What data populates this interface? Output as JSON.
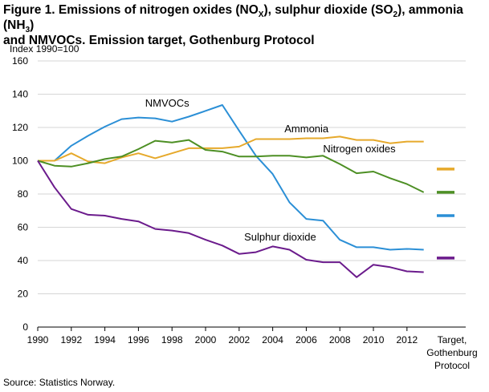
{
  "figure": {
    "title_parts": [
      {
        "t": "Figure 1. Emissions of nitrogen oxides (NO"
      },
      {
        "t": "X",
        "sub": true
      },
      {
        "t": "), sulphur dioxide (SO"
      },
      {
        "t": "2",
        "sub": true
      },
      {
        "t": "), ammonia (NH"
      },
      {
        "t": "3",
        "sub": true
      },
      {
        "t": ")"
      },
      {
        "t": "and NMVOCs. Emission target, Gothenburg Protocol",
        "br": true
      }
    ],
    "source": "Source: Statistics Norway."
  },
  "chart_data": {
    "type": "line",
    "ylabel": "Index 1990=100",
    "ylim": [
      0,
      160
    ],
    "yticks": [
      0,
      20,
      40,
      60,
      80,
      100,
      120,
      140,
      160
    ],
    "xlim": [
      1990,
      2015.5
    ],
    "xticks": [
      1990,
      1992,
      1994,
      1996,
      1998,
      2000,
      2002,
      2004,
      2006,
      2008,
      2010,
      2012
    ],
    "grid": true,
    "target_label": [
      "Target,",
      "Gothenburg",
      "Protocol"
    ],
    "series": [
      {
        "name": "NMVOCs",
        "color": "#2b8fd6",
        "x": [
          1990,
          1991,
          1992,
          1993,
          1994,
          1995,
          1996,
          1997,
          1998,
          1999,
          2000,
          2001,
          2002,
          2003,
          2004,
          2005,
          2006,
          2007,
          2008,
          2009,
          2010,
          2011,
          2012,
          2013
        ],
        "y": [
          100,
          100,
          109,
          115,
          120.5,
          125,
          126,
          125.5,
          123.5,
          126.5,
          130,
          133.5,
          118,
          103,
          92,
          75,
          65,
          64,
          52.5,
          48,
          48,
          46.5,
          47,
          46.5
        ],
        "target": 67
      },
      {
        "name": "Ammonia",
        "color": "#e6a92b",
        "x": [
          1990,
          1991,
          1992,
          1993,
          1994,
          1995,
          1996,
          1997,
          1998,
          1999,
          2000,
          2001,
          2002,
          2003,
          2004,
          2005,
          2006,
          2007,
          2008,
          2009,
          2010,
          2011,
          2012,
          2013
        ],
        "y": [
          100,
          100,
          104.5,
          99.5,
          98.5,
          102,
          104.5,
          101.5,
          104.5,
          107.5,
          107.5,
          107.5,
          108.5,
          113,
          113,
          113,
          113.5,
          113.5,
          114.5,
          112.5,
          112.5,
          110.5,
          111.5,
          111.5
        ],
        "target": 95
      },
      {
        "name": "Nitrogen oxides",
        "color": "#4d8f24",
        "x": [
          1990,
          1991,
          1992,
          1993,
          1994,
          1995,
          1996,
          1997,
          1998,
          1999,
          2000,
          2001,
          2002,
          2003,
          2004,
          2005,
          2006,
          2007,
          2008,
          2009,
          2010,
          2011,
          2012,
          2013
        ],
        "y": [
          100,
          97,
          96.5,
          98.5,
          101,
          102.5,
          107,
          112,
          111,
          112.5,
          106.5,
          105.5,
          102.5,
          102.5,
          103,
          103,
          102,
          103,
          98,
          92.5,
          93.5,
          89.5,
          86,
          81
        ],
        "target": 81
      },
      {
        "name": "Sulphur dioxide",
        "color": "#6b1b8c",
        "x": [
          1990,
          1991,
          1992,
          1993,
          1994,
          1995,
          1996,
          1997,
          1998,
          1999,
          2000,
          2001,
          2002,
          2003,
          2004,
          2005,
          2006,
          2007,
          2008,
          2009,
          2010,
          2011,
          2012,
          2013
        ],
        "y": [
          100,
          84,
          71,
          67.5,
          67,
          65,
          63.5,
          59,
          58,
          56.5,
          52.5,
          49,
          44,
          45,
          48.5,
          46.5,
          40.5,
          39,
          39,
          30,
          37.5,
          36,
          33.5,
          33
        ],
        "target": 41.5
      }
    ]
  }
}
